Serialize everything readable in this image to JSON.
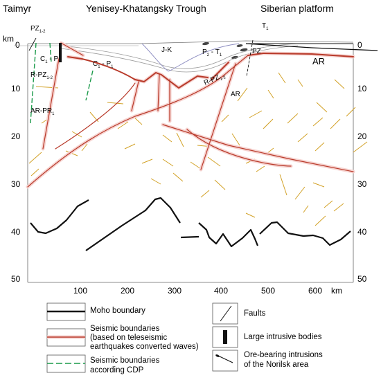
{
  "regions": {
    "left": "Taimyr",
    "center": "Yenisey-Khatangsky Trough",
    "right": "Siberian platform"
  },
  "axes": {
    "depth_unit": "km",
    "distance_unit": "km",
    "depth_ticks": [
      "0",
      "10",
      "20",
      "30",
      "40",
      "50"
    ],
    "distance_ticks": [
      "100",
      "200",
      "300",
      "400",
      "500",
      "600"
    ]
  },
  "units": {
    "pz12": {
      "main": "PZ",
      "sub": "1-2"
    },
    "t1": {
      "main": "T",
      "sub": "1"
    },
    "jk": {
      "main": "J-K",
      "sub": ""
    },
    "p2t1": {
      "main": "P",
      "sub": "2",
      "rest": " - T",
      "sub2": "1"
    },
    "pz": {
      "main": "PZ",
      "sub": ""
    },
    "ar_top": {
      "main": "AR",
      "sub": ""
    },
    "cp_left": {
      "main": "C",
      "sub": "1",
      "rest": " - P",
      "sub2": ""
    },
    "cp_mid": {
      "main": "C",
      "sub": "1",
      "rest": " - P",
      "sub2": "1"
    },
    "rpz_left": {
      "main": "R-PZ",
      "sub": "1-2"
    },
    "rpz_mid": {
      "main": "R-PZ",
      "sub": "1-2"
    },
    "ar_mid": {
      "main": "AR",
      "sub": ""
    },
    "arpr": {
      "main": "AR-PR",
      "sub": "1"
    }
  },
  "legend": {
    "moho": "Moho boundary",
    "seismic_lines": [
      "Seismic boundaries",
      "(based on teleseismic",
      "earthquakes converted waves)"
    ],
    "cdp_lines": [
      "Seismic boundaries",
      "according CDP"
    ],
    "faults": "Faults",
    "intrusive": "Large intrusive bodies",
    "ore_lines": [
      "Ore-bearing intrusions",
      "of the Norilsk area"
    ]
  },
  "colors": {
    "seismic": "#b83a2a",
    "seismic_halo": "#f6d3d0",
    "fault": "#d2a126",
    "cdp": "#1b9a4a",
    "moho": "#111111",
    "layer": "#9a9a9a",
    "jk_line": "#8c8cc0"
  }
}
